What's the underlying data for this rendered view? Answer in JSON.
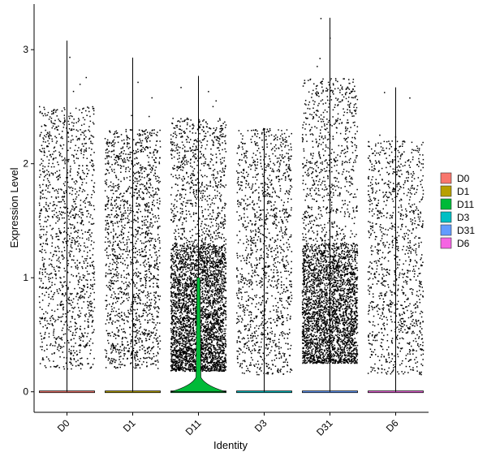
{
  "chart_data": {
    "type": "violin",
    "xlabel": "Identity",
    "ylabel": "Expression Level",
    "ylim": [
      -0.18,
      3.4
    ],
    "yticks": [
      0,
      1,
      2,
      3
    ],
    "categories": [
      "D0",
      "D1",
      "D11",
      "D3",
      "D31",
      "D6"
    ],
    "series": [
      {
        "name": "D0",
        "color": "#F8766D",
        "max": 3.08,
        "points_shown": 1300,
        "cluster_low": 0.2,
        "cluster_high": 2.5
      },
      {
        "name": "D1",
        "color": "#B79F00",
        "max": 2.93,
        "points_shown": 1600,
        "cluster_low": 0.2,
        "cluster_high": 2.3
      },
      {
        "name": "D11",
        "color": "#00BA38",
        "max": 2.77,
        "points_shown": 4200,
        "cluster_low": 0.18,
        "cluster_high": 2.4
      },
      {
        "name": "D3",
        "color": "#00BFC4",
        "max": 2.31,
        "points_shown": 1300,
        "cluster_low": 0.15,
        "cluster_high": 2.3
      },
      {
        "name": "D31",
        "color": "#619CFF",
        "max": 3.28,
        "points_shown": 3600,
        "cluster_low": 0.25,
        "cluster_high": 2.75
      },
      {
        "name": "D6",
        "color": "#F564E3",
        "max": 2.67,
        "points_shown": 1100,
        "cluster_low": 0.15,
        "cluster_high": 2.2
      }
    ],
    "legend": {
      "position": "right",
      "entries": [
        "D0",
        "D1",
        "D11",
        "D3",
        "D31",
        "D6"
      ]
    },
    "grid": false
  }
}
